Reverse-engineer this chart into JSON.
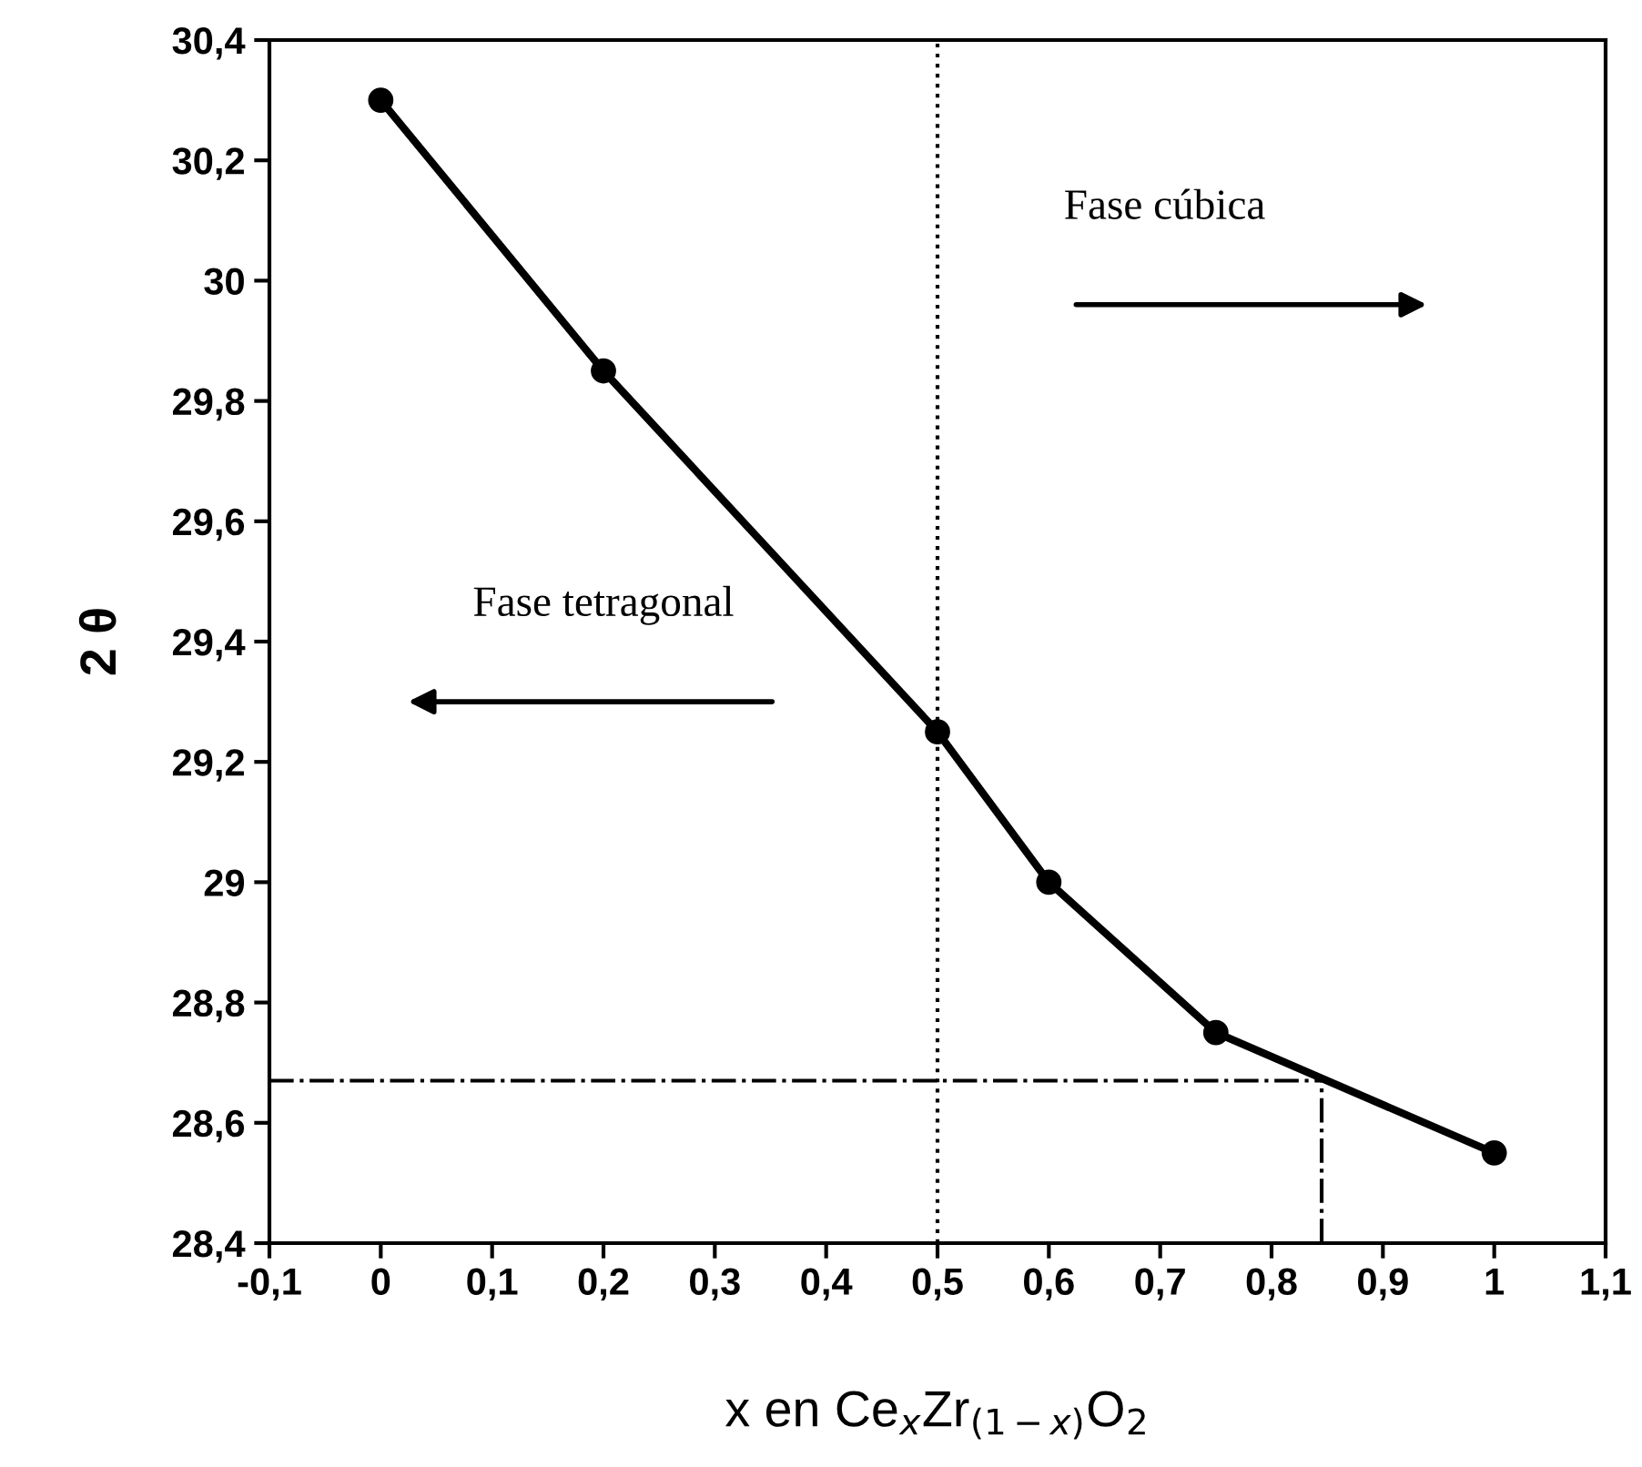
{
  "chart_data": {
    "type": "line",
    "xlabel": "x en Ce$_{x}$Zr$_{(1−x)}$O$_{2}$",
    "ylabel": "2 θ",
    "x": [
      0,
      0.2,
      0.5,
      0.6,
      0.75,
      1
    ],
    "series": [
      {
        "color": "#000000",
        "values": [
          30.3,
          29.85,
          29.25,
          29.0,
          28.75,
          28.55
        ],
        "marker": "circle",
        "line_style": "solid"
      }
    ],
    "ref_lines": [
      {
        "axis": "x",
        "value": 0.5,
        "color": "#000000",
        "line_style": "dotted"
      },
      {
        "axis": "y",
        "value": 28.67,
        "color": "#000000",
        "line_style": "dashdot"
      },
      {
        "axis": "x",
        "value": 0.845,
        "color": "#000000",
        "line_style": "dashdot"
      }
    ],
    "annotations": [
      "Fase cúbica",
      "Fase tetragonal"
    ],
    "xlim": [
      -0.1,
      1.1
    ],
    "xticks": [
      {
        "value": -0.1,
        "label": "-0,1"
      },
      0,
      {
        "value": 0.1,
        "label": "0,1"
      },
      {
        "value": 0.2,
        "label": "0,2"
      },
      {
        "value": 0.3,
        "label": "0,3"
      },
      {
        "value": 0.4,
        "label": "0,4"
      },
      {
        "value": 0.5,
        "label": "0,5"
      },
      {
        "value": 0.6,
        "label": "0,6"
      },
      {
        "value": 0.7,
        "label": "0,7"
      },
      {
        "value": 0.8,
        "label": "0,8"
      },
      {
        "value": 0.9,
        "label": "0,9"
      },
      1,
      {
        "value": 1.1,
        "label": "1,1"
      }
    ],
    "ylim": [
      28.4,
      30.4
    ],
    "yticks": [
      {
        "value": 28.4,
        "label": "28,4"
      },
      {
        "value": 28.6,
        "label": "28,6"
      },
      {
        "value": 28.8,
        "label": "28,8"
      },
      29,
      {
        "value": 29.2,
        "label": "29,2"
      },
      {
        "value": 29.4,
        "label": "29,4"
      },
      {
        "value": 29.6,
        "label": "29,6"
      },
      {
        "value": 29.8,
        "label": "29,8"
      },
      30,
      {
        "value": 30.2,
        "label": "30,2"
      },
      {
        "value": 30.4,
        "label": "30,4"
      }
    ],
    "grid": false,
    "legend": false
  }
}
